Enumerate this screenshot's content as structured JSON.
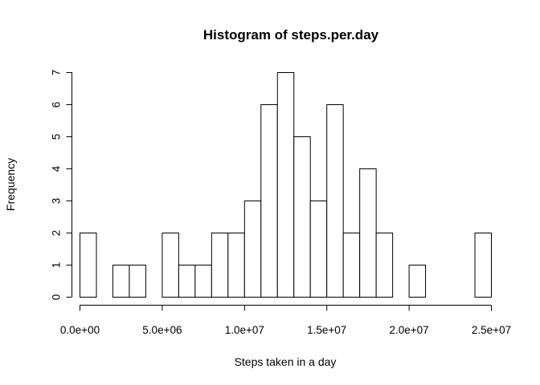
{
  "chart_data": {
    "type": "bar",
    "title": "Histogram of steps.per.day",
    "xlabel": "Steps taken in a day",
    "ylabel": "Frequency",
    "bin_width": 1000000,
    "bin_start": 0,
    "counts": [
      2,
      0,
      1,
      1,
      0,
      2,
      1,
      1,
      2,
      2,
      3,
      6,
      7,
      5,
      3,
      6,
      2,
      4,
      2,
      0,
      1,
      0,
      0,
      0,
      2
    ],
    "xlim": [
      0,
      25000000
    ],
    "ylim": [
      0,
      7
    ],
    "x_ticks": [
      {
        "value": 0,
        "label": "0.0e+00"
      },
      {
        "value": 5000000,
        "label": "5.0e+06"
      },
      {
        "value": 10000000,
        "label": "1.0e+07"
      },
      {
        "value": 15000000,
        "label": "1.5e+07"
      },
      {
        "value": 20000000,
        "label": "2.0e+07"
      },
      {
        "value": 25000000,
        "label": "2.5e+07"
      }
    ],
    "y_ticks": [
      {
        "value": 0,
        "label": "0"
      },
      {
        "value": 1,
        "label": "1"
      },
      {
        "value": 2,
        "label": "2"
      },
      {
        "value": 3,
        "label": "3"
      },
      {
        "value": 4,
        "label": "4"
      },
      {
        "value": 5,
        "label": "5"
      },
      {
        "value": 6,
        "label": "6"
      },
      {
        "value": 7,
        "label": "7"
      }
    ],
    "grid": false,
    "fill_color": "#ffffff",
    "stroke_color": "#000000"
  }
}
